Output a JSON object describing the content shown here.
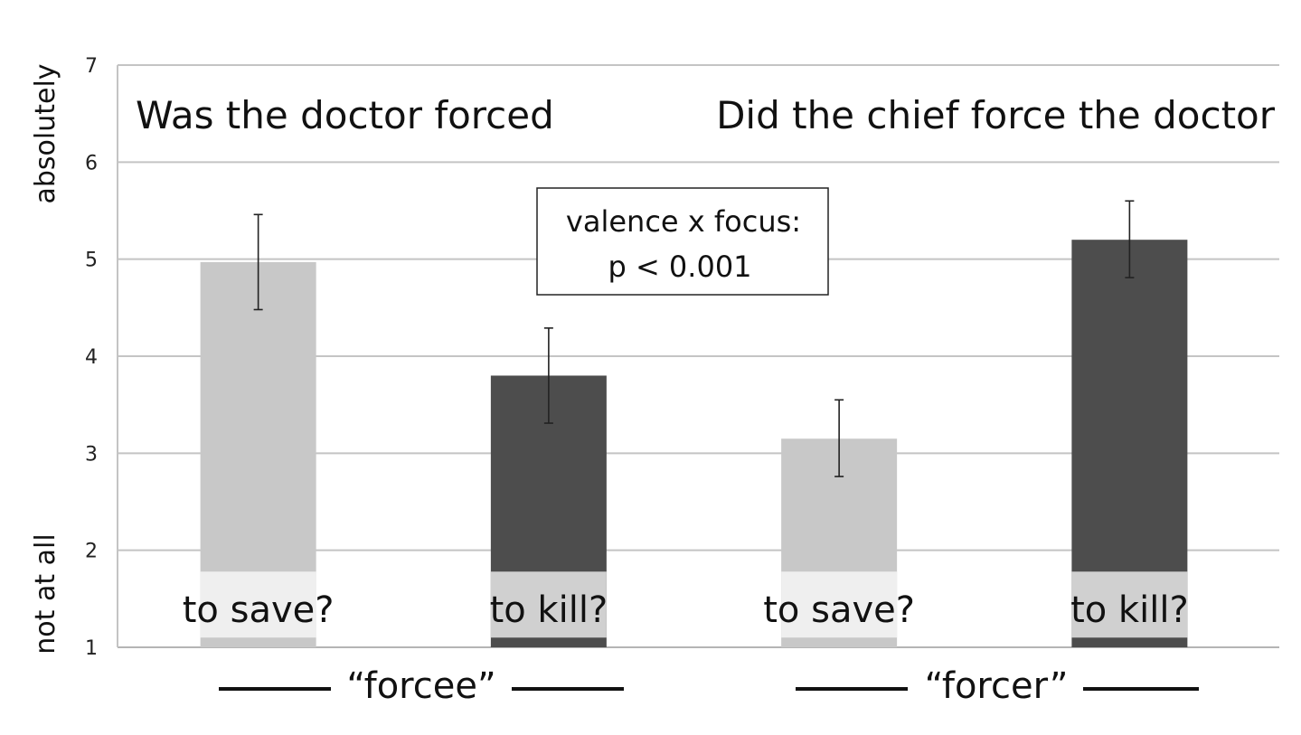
{
  "chart_data": {
    "type": "bar",
    "ylim": [
      1,
      7
    ],
    "yticks": [
      1,
      2,
      3,
      4,
      5,
      6,
      7
    ],
    "grid": true,
    "ylabel_top": "absolutely",
    "ylabel_bottom": "not at all",
    "panel_titles": [
      "Was the doctor forced",
      "Did the chief force the doctor"
    ],
    "annotation": [
      "valence x focus:",
      "p < 0.001"
    ],
    "categories": [
      "to save?",
      "to kill?",
      "to save?",
      "to kill?"
    ],
    "groups": [
      "“forcee”",
      "“forcer”"
    ],
    "values": [
      4.97,
      3.8,
      3.15,
      5.2
    ],
    "error_low": [
      4.48,
      3.31,
      2.76,
      4.81
    ],
    "error_high": [
      5.46,
      4.29,
      3.55,
      5.6
    ],
    "colors": [
      "#c8c8c8",
      "#4d4d4d",
      "#c8c8c8",
      "#4d4d4d"
    ],
    "label_band_colors": [
      "#efefef",
      "#d0d0d0",
      "#efefef",
      "#d0d0d0"
    ]
  }
}
